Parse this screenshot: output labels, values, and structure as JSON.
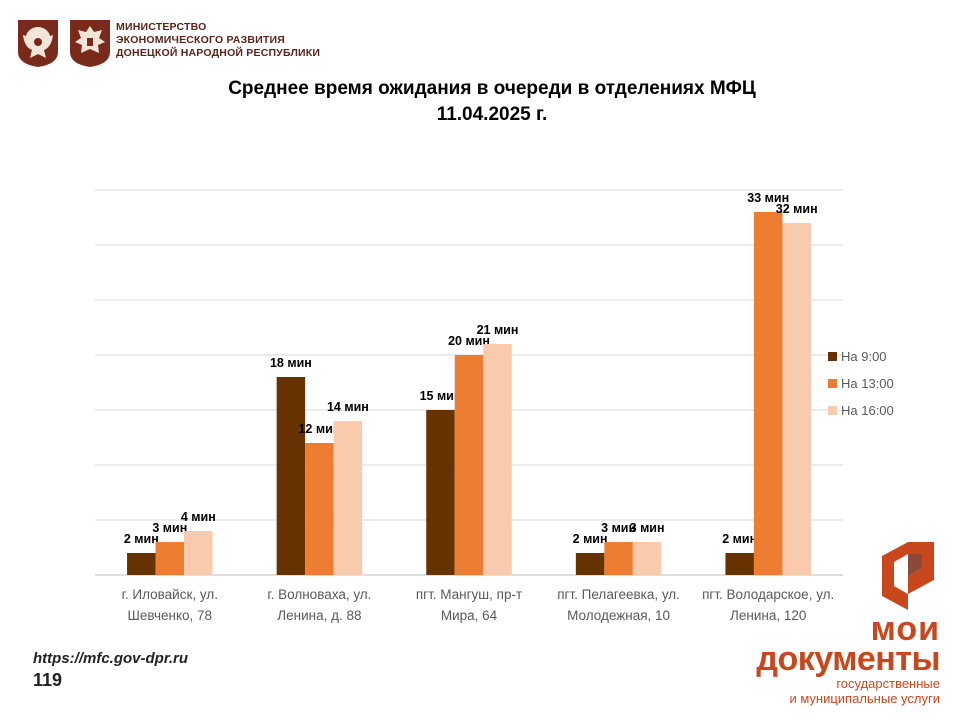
{
  "header": {
    "ministry_lines": [
      "МИНИСТЕРСТВО",
      "ЭКОНОМИЧЕСКОГО РАЗВИТИЯ",
      "ДОНЕЦКОЙ НАРОДНОЙ РЕСПУБЛИКИ"
    ],
    "emblem_icon": "coat-of-arms-icon",
    "emblem_color": "#7a2a1a"
  },
  "footer": {
    "url": "https://mfc.gov-dpr.ru",
    "page_number": "119"
  },
  "brand": {
    "line1": "мои",
    "line2": "документы",
    "line3": "государственные",
    "line4": "и муниципальные услуги",
    "icon": "moi-dokumenty-logo-icon",
    "color": "#c9471c"
  },
  "chart_data": {
    "type": "bar",
    "title": [
      "Среднее время ожидания в очереди в отделениях МФЦ",
      "11.04.2025 г."
    ],
    "categories": [
      [
        "г. Иловайск, ул.",
        "Шевченко, 78"
      ],
      [
        "г. Волноваха, ул.",
        "Ленина, д. 88"
      ],
      [
        "пгт. Мангуш, пр-т",
        "Мира, 64"
      ],
      [
        "пгт. Пелагеевка, ул.",
        "Молодежная, 10"
      ],
      [
        "пгт. Володарское, ул.",
        "Ленина, 120"
      ]
    ],
    "series": [
      {
        "name": "На 9:00",
        "color": "#663300",
        "values": [
          2,
          18,
          15,
          2,
          2
        ],
        "labels": [
          "2 мин",
          "18 мин",
          "15 мин",
          "2 мин",
          "2 мин"
        ]
      },
      {
        "name": "На 13:00",
        "color": "#ed7d31",
        "values": [
          3,
          12,
          20,
          3,
          33
        ],
        "labels": [
          "3  мин",
          "12 мин",
          "20 мин",
          "3 мин",
          "33 мин"
        ]
      },
      {
        "name": "На 16:00",
        "color": "#f8cbad",
        "values": [
          4,
          14,
          21,
          3,
          32
        ],
        "labels": [
          "4 мин",
          "14 мин",
          "21 мин",
          "3 мин",
          "32 мин"
        ]
      }
    ],
    "ylim": [
      0,
      35
    ],
    "grid": true,
    "legend": "right"
  }
}
